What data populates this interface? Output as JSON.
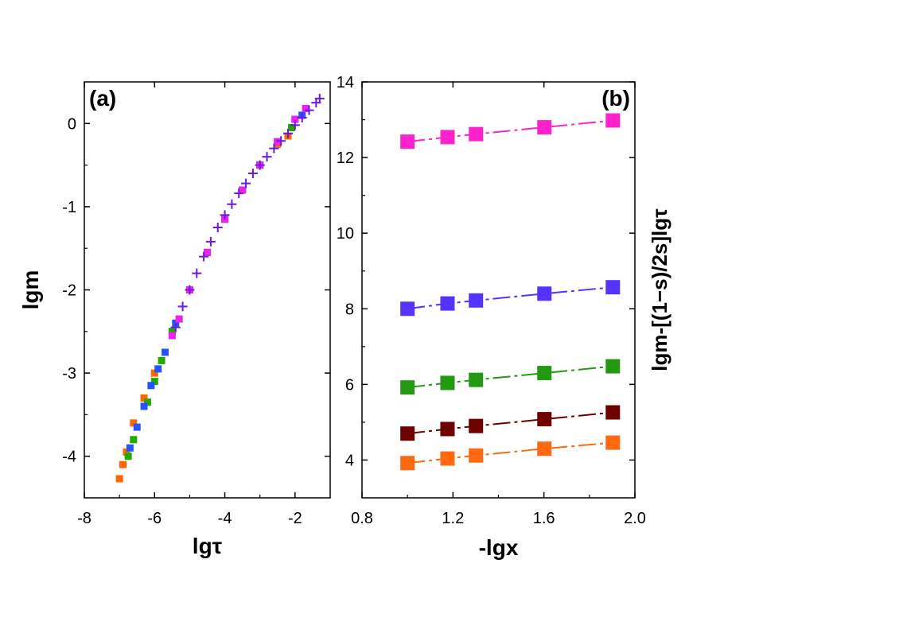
{
  "chart_data": [
    {
      "type": "scatter",
      "panel_label": "(a)",
      "xlabel": "lgτ",
      "ylabel": "lgm",
      "xlim": [
        -8,
        -1
      ],
      "ylim": [
        -4.5,
        0.5
      ],
      "xticks": [
        -8,
        -6,
        -4,
        -2
      ],
      "yticks": [
        -4,
        -3,
        -2,
        -1,
        0
      ],
      "xtick_labels": [
        "-8",
        "-6",
        "-4",
        "-2"
      ],
      "ytick_labels": [
        "-4",
        "-3",
        "-2",
        "-1",
        "0"
      ],
      "series": [
        {
          "name": "orange",
          "color": "#ff6600",
          "marker": "square",
          "x": [
            -7.0,
            -6.9,
            -6.8,
            -6.6,
            -6.3,
            -6.0,
            -5.5,
            -5.0,
            -4.5,
            -4.0,
            -3.5,
            -3.0,
            -2.5,
            -2.2
          ],
          "y": [
            -4.27,
            -4.1,
            -3.95,
            -3.6,
            -3.3,
            -3.0,
            -2.5,
            -2.0,
            -1.55,
            -1.15,
            -0.8,
            -0.5,
            -0.25,
            -0.15
          ]
        },
        {
          "name": "green",
          "color": "#22aa00",
          "marker": "square",
          "x": [
            -6.75,
            -6.6,
            -6.2,
            -6.0,
            -5.8,
            -5.5,
            -5.0,
            -4.5,
            -4.0,
            -3.5,
            -3.0,
            -2.5,
            -2.1
          ],
          "y": [
            -4.0,
            -3.8,
            -3.35,
            -3.1,
            -2.85,
            -2.5,
            -2.0,
            -1.55,
            -1.15,
            -0.8,
            -0.5,
            -0.22,
            -0.05
          ]
        },
        {
          "name": "blue",
          "color": "#2255ff",
          "marker": "square",
          "x": [
            -6.7,
            -6.5,
            -6.3,
            -6.1,
            -5.9,
            -5.7,
            -5.4,
            -5.0,
            -4.5,
            -4.0,
            -3.5,
            -3.0,
            -2.5,
            -2.0,
            -1.8
          ],
          "y": [
            -3.9,
            -3.65,
            -3.4,
            -3.15,
            -2.95,
            -2.75,
            -2.4,
            -2.0,
            -1.55,
            -1.15,
            -0.8,
            -0.5,
            -0.22,
            0.05,
            0.1
          ]
        },
        {
          "name": "magenta",
          "color": "#ee22ee",
          "marker": "square",
          "x": [
            -5.5,
            -5.3,
            -5.0,
            -4.5,
            -4.0,
            -3.5,
            -3.0,
            -2.5,
            -2.0,
            -1.7
          ],
          "y": [
            -2.55,
            -2.35,
            -2.0,
            -1.55,
            -1.15,
            -0.8,
            -0.5,
            -0.22,
            0.05,
            0.18
          ]
        },
        {
          "name": "purple",
          "color": "#6a1bd9",
          "marker": "plus",
          "x": [
            -5.4,
            -5.2,
            -5.0,
            -4.8,
            -4.6,
            -4.4,
            -4.2,
            -4.0,
            -3.8,
            -3.6,
            -3.4,
            -3.2,
            -3.0,
            -2.8,
            -2.6,
            -2.4,
            -2.2,
            -2.0,
            -1.8,
            -1.6,
            -1.4,
            -1.3
          ],
          "y": [
            -2.45,
            -2.2,
            -2.0,
            -1.8,
            -1.6,
            -1.42,
            -1.25,
            -1.1,
            -0.97,
            -0.84,
            -0.72,
            -0.6,
            -0.5,
            -0.4,
            -0.3,
            -0.21,
            -0.12,
            -0.02,
            0.07,
            0.16,
            0.25,
            0.3
          ]
        }
      ]
    },
    {
      "type": "line",
      "panel_label": "(b)",
      "xlabel": "-lgx",
      "ylabel": "lgm-[(1−s)/2s]lgτ",
      "xlim": [
        0.8,
        2.0
      ],
      "ylim": [
        3,
        14
      ],
      "xticks": [
        0.8,
        1.2,
        1.6,
        2.0
      ],
      "yticks": [
        4,
        6,
        8,
        10,
        12,
        14
      ],
      "xtick_labels": [
        "0.8",
        "1.2",
        "1.6",
        "2.0"
      ],
      "ytick_labels": [
        "4",
        "6",
        "8",
        "10",
        "12",
        "14"
      ],
      "x": [
        1.0,
        1.176,
        1.301,
        1.602,
        1.903
      ],
      "series": [
        {
          "name": "magenta",
          "color": "#ff22cc",
          "values": [
            12.42,
            12.54,
            12.62,
            12.8,
            12.98
          ]
        },
        {
          "name": "blue",
          "color": "#5533ff",
          "values": [
            8.0,
            8.14,
            8.22,
            8.4,
            8.57
          ]
        },
        {
          "name": "green",
          "color": "#229911",
          "values": [
            5.92,
            6.04,
            6.12,
            6.3,
            6.48
          ]
        },
        {
          "name": "darkred",
          "color": "#6e0000",
          "values": [
            4.7,
            4.82,
            4.9,
            5.08,
            5.26
          ]
        },
        {
          "name": "orange",
          "color": "#ff6a10",
          "values": [
            3.92,
            4.04,
            4.12,
            4.3,
            4.46
          ]
        }
      ]
    }
  ]
}
